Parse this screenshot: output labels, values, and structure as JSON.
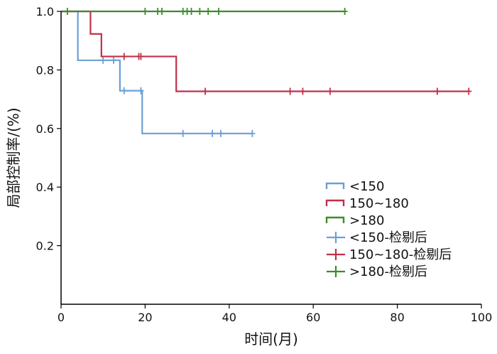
{
  "chart_data": {
    "type": "line",
    "xlabel": "时间(月)",
    "ylabel": "局部控制率/(%)",
    "xlim": [
      0,
      100
    ],
    "ylim": [
      0,
      1.0
    ],
    "xticks": [
      0,
      20,
      40,
      60,
      80,
      100
    ],
    "yticks": [
      0.2,
      0.4,
      0.6,
      0.8,
      1.0
    ],
    "ytick_labels": [
      "0.2",
      "0.4",
      "0.6",
      "0.8",
      "1.0"
    ],
    "grid": false,
    "legend_position": "bottom-right",
    "series": [
      {
        "name": "<150",
        "color": "#6c9fd4",
        "steps": [
          [
            0,
            1.0
          ],
          [
            4,
            0.833
          ],
          [
            14,
            0.729
          ],
          [
            19.3,
            0.583
          ],
          [
            45.5,
            0.583
          ]
        ],
        "censored_name": "<150-检剔后",
        "censored": [
          [
            10,
            0.833
          ],
          [
            12.5,
            0.833
          ],
          [
            15,
            0.729
          ],
          [
            19,
            0.729
          ],
          [
            29,
            0.583
          ],
          [
            36,
            0.583
          ],
          [
            38,
            0.583
          ],
          [
            45.5,
            0.583
          ]
        ]
      },
      {
        "name": "150~180",
        "color": "#c0304a",
        "steps": [
          [
            0,
            1.0
          ],
          [
            7,
            0.923
          ],
          [
            9.6,
            0.846
          ],
          [
            27.4,
            0.727
          ],
          [
            97,
            0.727
          ]
        ],
        "censored_name": "150~180-检剔后",
        "censored": [
          [
            15,
            0.846
          ],
          [
            18.5,
            0.846
          ],
          [
            19,
            0.846
          ],
          [
            34.3,
            0.727
          ],
          [
            54.5,
            0.727
          ],
          [
            57.5,
            0.727
          ],
          [
            64,
            0.727
          ],
          [
            89.5,
            0.727
          ],
          [
            97,
            0.727
          ]
        ]
      },
      {
        "name": ">180",
        "color": "#3e8a2c",
        "steps": [
          [
            0,
            1.0
          ],
          [
            67.5,
            1.0
          ]
        ],
        "censored_name": ">180-检剔后",
        "censored": [
          [
            1.5,
            1.0
          ],
          [
            20,
            1.0
          ],
          [
            23,
            1.0
          ],
          [
            24,
            1.0
          ],
          [
            29,
            1.0
          ],
          [
            30,
            1.0
          ],
          [
            31,
            1.0
          ],
          [
            33,
            1.0
          ],
          [
            35,
            1.0
          ],
          [
            37.5,
            1.0
          ],
          [
            67.5,
            1.0
          ]
        ]
      }
    ]
  }
}
